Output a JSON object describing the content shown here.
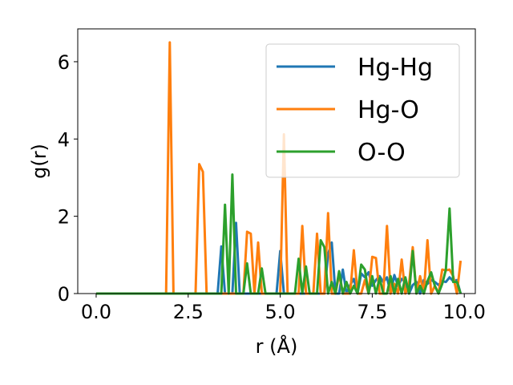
{
  "chart_data": {
    "type": "line",
    "title": "",
    "xlabel": "r (Å)",
    "ylabel": "g(r)",
    "xlim": [
      -0.5,
      10.3
    ],
    "ylim": [
      0,
      6.85
    ],
    "xticks": [
      0.0,
      2.5,
      5.0,
      7.5,
      10.0
    ],
    "xtick_labels": [
      "0.0",
      "2.5",
      "5.0",
      "7.5",
      "10.0"
    ],
    "yticks": [
      0,
      2,
      4,
      6
    ],
    "ytick_labels": [
      "0",
      "2",
      "4",
      "6"
    ],
    "grid": false,
    "legend_position": "top-right",
    "x": [
      0.0,
      0.1,
      0.2,
      0.3,
      0.4,
      0.5,
      0.6,
      0.7,
      0.8,
      0.9,
      1.0,
      1.1,
      1.2,
      1.3,
      1.4,
      1.5,
      1.6,
      1.7,
      1.8,
      1.9,
      2.0,
      2.1,
      2.2,
      2.3,
      2.4,
      2.5,
      2.6,
      2.7,
      2.8,
      2.9,
      3.0,
      3.1,
      3.2,
      3.3,
      3.4,
      3.5,
      3.6,
      3.7,
      3.8,
      3.9,
      4.0,
      4.1,
      4.2,
      4.3,
      4.4,
      4.5,
      4.6,
      4.7,
      4.8,
      4.9,
      5.0,
      5.1,
      5.2,
      5.3,
      5.4,
      5.5,
      5.6,
      5.7,
      5.8,
      5.9,
      6.0,
      6.1,
      6.2,
      6.3,
      6.4,
      6.5,
      6.6,
      6.7,
      6.8,
      6.9,
      7.0,
      7.1,
      7.2,
      7.3,
      7.4,
      7.5,
      7.6,
      7.7,
      7.8,
      7.9,
      8.0,
      8.1,
      8.2,
      8.3,
      8.4,
      8.5,
      8.6,
      8.7,
      8.8,
      8.9,
      9.0,
      9.1,
      9.2,
      9.3,
      9.4,
      9.5,
      9.6,
      9.7,
      9.8,
      9.9
    ],
    "series": [
      {
        "name": "Hg-Hg",
        "color": "#1f77b4",
        "values": [
          0,
          0,
          0,
          0,
          0,
          0,
          0,
          0,
          0,
          0,
          0,
          0,
          0,
          0,
          0,
          0,
          0,
          0,
          0,
          0,
          0,
          0,
          0,
          0,
          0,
          0,
          0,
          0,
          0,
          0,
          0,
          0,
          0,
          0,
          1.22,
          0,
          0,
          0,
          1.83,
          0,
          0,
          0,
          0,
          0,
          0,
          0,
          0,
          0,
          0,
          0,
          1.1,
          0,
          0,
          0,
          0,
          0,
          0,
          0,
          0,
          0,
          0,
          0,
          0,
          1.02,
          1.32,
          0,
          0,
          0.62,
          0,
          0.22,
          0.38,
          0,
          0.52,
          0.42,
          0.55,
          0.2,
          0.35,
          0.45,
          0.3,
          0.42,
          0,
          0.48,
          0.2,
          0.38,
          0.3,
          0,
          0.22,
          0.3,
          0,
          0.35,
          0.25,
          0.35,
          0.3,
          0.22,
          0.32,
          0.3,
          0.42,
          0.32,
          0.35,
          0
        ]
      },
      {
        "name": "Hg-O",
        "color": "#ff7f0e",
        "values": [
          0,
          0,
          0,
          0,
          0,
          0,
          0,
          0,
          0,
          0,
          0,
          0,
          0,
          0,
          0,
          0,
          0,
          0,
          0,
          0,
          6.5,
          0,
          0,
          0,
          0,
          0,
          0,
          0,
          3.35,
          3.15,
          0,
          0,
          0,
          0,
          0,
          0,
          0,
          0,
          0,
          0,
          0,
          1.6,
          1.55,
          0,
          1.32,
          0,
          0,
          0,
          0,
          0,
          0,
          4.12,
          0,
          0,
          0,
          0,
          1.75,
          0,
          0,
          0,
          1.55,
          0,
          0,
          2.08,
          0,
          0,
          0.5,
          0,
          0,
          0,
          1.12,
          0,
          0,
          0.35,
          0,
          0.95,
          0.92,
          0,
          0,
          1.75,
          0,
          0.25,
          0,
          0.88,
          0,
          0.25,
          1.2,
          0,
          0.45,
          0,
          1.38,
          0,
          0.2,
          0,
          0.62,
          0.6,
          0.62,
          0.45,
          0,
          0.85
        ]
      },
      {
        "name": "O-O",
        "color": "#2ca02c",
        "values": [
          0,
          0,
          0,
          0,
          0,
          0,
          0,
          0,
          0,
          0,
          0,
          0,
          0,
          0,
          0,
          0,
          0,
          0,
          0,
          0,
          0,
          0,
          0,
          0,
          0,
          0,
          0,
          0,
          0,
          0,
          0,
          0,
          0,
          0,
          0,
          2.3,
          0,
          3.08,
          0,
          0,
          0,
          0.78,
          0,
          0,
          0,
          0.65,
          0,
          0,
          0,
          0,
          0,
          0,
          0,
          0,
          0,
          0.9,
          0,
          0.7,
          0,
          0,
          0,
          1.38,
          1.2,
          0,
          0.3,
          0,
          0.58,
          0,
          0.3,
          0,
          0.2,
          0,
          0.75,
          0.62,
          0,
          0.45,
          0,
          0.4,
          0,
          0,
          0.45,
          0,
          0.38,
          0,
          0.42,
          0,
          1.1,
          0,
          0.2,
          0,
          0.32,
          0.55,
          0.2,
          0,
          0.25,
          0.62,
          2.2,
          0.3,
          0.3,
          0
        ]
      }
    ]
  }
}
